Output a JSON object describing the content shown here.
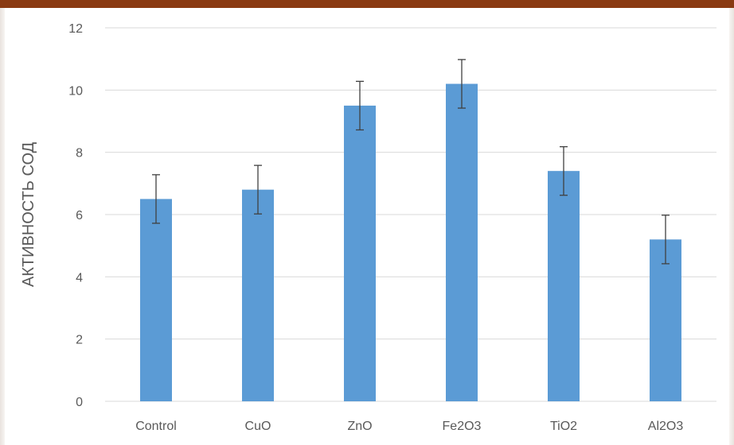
{
  "chart_data": {
    "type": "bar",
    "title": "",
    "xlabel": "",
    "ylabel": "АКТИВНОСТЬ СОД",
    "categories": [
      "Control",
      "CuO",
      "ZnO",
      "Fe2O3",
      "TiO2",
      "Al2O3"
    ],
    "values": [
      6.5,
      6.8,
      9.5,
      10.2,
      7.4,
      5.2
    ],
    "error": [
      0.78,
      0.78,
      0.78,
      0.78,
      0.78,
      0.78
    ],
    "ylim": [
      0,
      12
    ],
    "yticks": [
      0,
      2,
      4,
      6,
      8,
      10,
      12
    ],
    "grid": true,
    "legend": "none",
    "colors": {
      "bar": "#5b9bd5",
      "error": "#404040",
      "grid": "#d9d9d9",
      "axis": "#d9d9d9",
      "frame": "#8a3a12"
    }
  }
}
